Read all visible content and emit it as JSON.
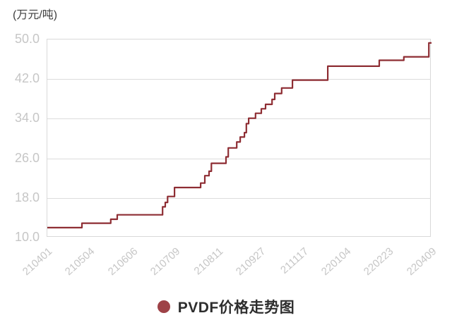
{
  "unit_label": "(万元/吨)",
  "legend": {
    "label": "PVDF价格走势图"
  },
  "colors": {
    "line": "#8e2d33",
    "legend_dot": "#9e4247",
    "grid": "#dcdcdc",
    "plot_border": "#d9d9d9",
    "tick_text": "#c6c6c6",
    "unit_text": "#3f3f3f",
    "legend_text": "#2e2e2e",
    "background": "#ffffff"
  },
  "chart_data": {
    "type": "line",
    "interpolation": "step-after",
    "title": "PVDF价格走势图",
    "ylabel": "(万元/吨)",
    "xlabel": "",
    "ylim": [
      10,
      50
    ],
    "grid": true,
    "legend_position": "bottom-center",
    "ytick_labels": [
      "50.0",
      "42.0",
      "34.0",
      "26.0",
      "18.0",
      "10.0"
    ],
    "ytick_values": [
      50,
      42,
      34,
      26,
      18,
      10
    ],
    "xtick_labels": [
      "210401",
      "210504",
      "210606",
      "210709",
      "210811",
      "210927",
      "211117",
      "220104",
      "220223",
      "220409"
    ],
    "series": [
      {
        "name": "PVDF价格走势图",
        "points": [
          {
            "x": 0.0,
            "v": 12.0
          },
          {
            "x": 0.09,
            "v": 12.9
          },
          {
            "x": 0.165,
            "v": 13.7
          },
          {
            "x": 0.182,
            "v": 14.6
          },
          {
            "x": 0.3,
            "v": 16.2
          },
          {
            "x": 0.307,
            "v": 17.1
          },
          {
            "x": 0.313,
            "v": 18.3
          },
          {
            "x": 0.331,
            "v": 20.1
          },
          {
            "x": 0.399,
            "v": 21.0
          },
          {
            "x": 0.41,
            "v": 22.5
          },
          {
            "x": 0.421,
            "v": 23.4
          },
          {
            "x": 0.427,
            "v": 25.0
          },
          {
            "x": 0.465,
            "v": 26.3
          },
          {
            "x": 0.471,
            "v": 28.1
          },
          {
            "x": 0.493,
            "v": 29.3
          },
          {
            "x": 0.502,
            "v": 30.3
          },
          {
            "x": 0.513,
            "v": 31.2
          },
          {
            "x": 0.518,
            "v": 33.0
          },
          {
            "x": 0.524,
            "v": 34.1
          },
          {
            "x": 0.542,
            "v": 35.1
          },
          {
            "x": 0.557,
            "v": 36.0
          },
          {
            "x": 0.568,
            "v": 36.9
          },
          {
            "x": 0.585,
            "v": 37.9
          },
          {
            "x": 0.592,
            "v": 39.1
          },
          {
            "x": 0.61,
            "v": 40.2
          },
          {
            "x": 0.638,
            "v": 41.8
          },
          {
            "x": 0.73,
            "v": 44.6
          },
          {
            "x": 0.864,
            "v": 45.8
          },
          {
            "x": 0.928,
            "v": 46.5
          },
          {
            "x": 0.993,
            "v": 49.3
          }
        ]
      }
    ]
  }
}
